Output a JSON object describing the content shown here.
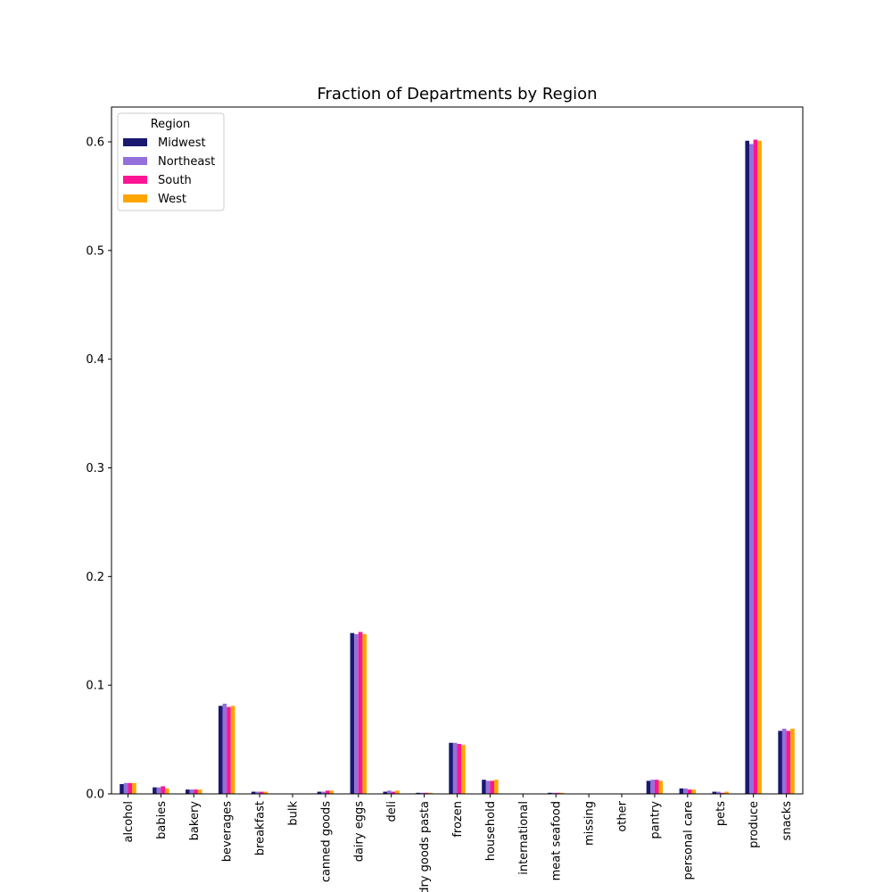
{
  "chart_data": {
    "type": "bar",
    "title": "Fraction of Departments by Region",
    "xlabel": "",
    "ylabel": "",
    "ylim": [
      0,
      0.632
    ],
    "yticks": [
      "0.0",
      "0.1",
      "0.2",
      "0.3",
      "0.4",
      "0.5",
      "0.6"
    ],
    "grid": false,
    "legend": {
      "title": "Region",
      "placement": "top-left"
    },
    "categories": [
      "alcohol",
      "babies",
      "bakery",
      "beverages",
      "breakfast",
      "bulk",
      "canned goods",
      "dairy eggs",
      "deli",
      "dry goods pasta",
      "frozen",
      "household",
      "international",
      "meat seafood",
      "missing",
      "other",
      "pantry",
      "personal care",
      "pets",
      "produce",
      "snacks"
    ],
    "series": [
      {
        "name": "Midwest",
        "color": "#191970",
        "values": [
          0.009,
          0.006,
          0.004,
          0.081,
          0.002,
          0.0,
          0.002,
          0.148,
          0.002,
          0.001,
          0.047,
          0.013,
          0.0,
          0.001,
          0.0,
          0.0,
          0.012,
          0.005,
          0.002,
          0.601,
          0.058
        ]
      },
      {
        "name": "Northeast",
        "color": "#9370DB",
        "values": [
          0.01,
          0.006,
          0.004,
          0.083,
          0.002,
          0.0,
          0.002,
          0.147,
          0.003,
          0.001,
          0.047,
          0.012,
          0.0,
          0.001,
          0.0,
          0.0,
          0.013,
          0.005,
          0.002,
          0.598,
          0.06
        ]
      },
      {
        "name": "South",
        "color": "#FF1493",
        "values": [
          0.01,
          0.007,
          0.004,
          0.08,
          0.002,
          0.0,
          0.003,
          0.149,
          0.002,
          0.001,
          0.046,
          0.012,
          0.0,
          0.001,
          0.0,
          0.0,
          0.013,
          0.004,
          0.001,
          0.602,
          0.058
        ]
      },
      {
        "name": "West",
        "color": "#FFA500",
        "values": [
          0.01,
          0.005,
          0.004,
          0.081,
          0.002,
          0.0,
          0.003,
          0.147,
          0.003,
          0.001,
          0.045,
          0.013,
          0.0,
          0.001,
          0.0,
          0.0,
          0.012,
          0.004,
          0.002,
          0.601,
          0.06
        ]
      }
    ]
  }
}
